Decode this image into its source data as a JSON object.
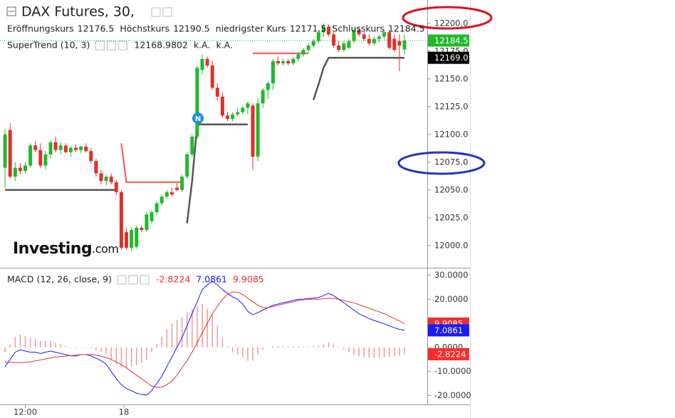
{
  "chart_data": [
    {
      "type": "candlestick",
      "title": "DAX Futures, 30,",
      "ohlc_labels": [
        "Eröffnungskurs",
        "Höchstkurs",
        "niedrigster Kurs",
        "Schlusskurs"
      ],
      "up_color": "#22b82d",
      "down_color": "#e0302a",
      "open": [
        12070,
        12104,
        12062,
        12070,
        12067,
        12072,
        12090,
        12086,
        12072,
        12082,
        12093,
        12086,
        12090,
        12084,
        12088,
        12086,
        12089,
        12085,
        12076,
        12065,
        12058,
        12062,
        12057,
        12048,
        12012,
        11998,
        11999,
        12016,
        12014,
        12022,
        12030,
        12038,
        12044,
        12048,
        12052,
        12050,
        12062,
        12082,
        12098,
        12158,
        12168,
        12162,
        12142,
        12134,
        12117,
        12114,
        12118,
        12120,
        12124,
        12126,
        12080,
        12128,
        12140,
        12146,
        12166,
        12164,
        12166,
        12164,
        12168,
        12172,
        12176,
        12180,
        12184,
        12192,
        12197,
        12190,
        12180,
        12176,
        12178,
        12184,
        12194,
        12190,
        12186,
        12182,
        12186,
        12188,
        12192,
        12186,
        12184,
        12176.5
      ],
      "high": [
        12105,
        12110,
        12075,
        12074,
        12075,
        12092,
        12094,
        12092,
        12085,
        12095,
        12098,
        12093,
        12092,
        12090,
        12091,
        12090,
        12092,
        12088,
        12078,
        12068,
        12064,
        12065,
        12059,
        12050,
        12016,
        12016,
        12018,
        12018,
        12030,
        12032,
        12040,
        12046,
        12050,
        12052,
        12056,
        12064,
        12084,
        12100,
        12162,
        12172,
        12170,
        12166,
        12146,
        12138,
        12120,
        12120,
        12124,
        12126,
        12130,
        12128,
        12132,
        12142,
        12148,
        12168,
        12170,
        12168,
        12168,
        12170,
        12174,
        12178,
        12182,
        12186,
        12194,
        12200,
        12199,
        12192,
        12184,
        12184,
        12186,
        12196,
        12196,
        12192,
        12190,
        12188,
        12190,
        12194,
        12194,
        12190,
        12190,
        12190.5
      ],
      "low": [
        12052,
        12060,
        12058,
        12064,
        12065,
        12070,
        12084,
        12070,
        12068,
        12078,
        12084,
        12082,
        12083,
        12080,
        12084,
        12083,
        12084,
        12074,
        12062,
        12055,
        12054,
        12055,
        12045,
        11996,
        11996,
        11995,
        11997,
        12012,
        12012,
        12020,
        12028,
        12036,
        12042,
        12044,
        12049,
        12048,
        12060,
        12080,
        12096,
        12154,
        12160,
        12140,
        12130,
        12115,
        12112,
        12112,
        12116,
        12118,
        12118,
        12068,
        12076,
        12124,
        12132,
        12140,
        12162,
        12162,
        12162,
        12162,
        12166,
        12170,
        12174,
        12178,
        12182,
        12188,
        12188,
        12178,
        12174,
        12174,
        12176,
        12182,
        12188,
        12184,
        12180,
        12180,
        12183,
        12186,
        12176,
        12174,
        12157,
        12171.5
      ],
      "close": [
        12100,
        12062,
        12070,
        12067,
        12072,
        12090,
        12086,
        12072,
        12082,
        12093,
        12086,
        12090,
        12084,
        12088,
        12086,
        12089,
        12085,
        12076,
        12065,
        12058,
        12062,
        12057,
        12048,
        11998,
        11998,
        12014,
        12016,
        12014,
        12028,
        12030,
        12038,
        12044,
        12048,
        12046,
        12050,
        12062,
        12082,
        12098,
        12160,
        12168,
        12162,
        12142,
        12134,
        12117,
        12114,
        12118,
        12120,
        12124,
        12128,
        12080,
        12128,
        12140,
        12146,
        12166,
        12164,
        12166,
        12164,
        12168,
        12172,
        12176,
        12180,
        12184,
        12192,
        12197,
        12190,
        12180,
        12176,
        12182,
        12184,
        12194,
        12190,
        12186,
        12182,
        12186,
        12188,
        12192,
        12178,
        12176,
        12180,
        12184.5
      ],
      "indicator_title": "SuperTrend (10, 3)",
      "indicator_extra": [
        "k.A.",
        "k.A."
      ],
      "supertrend": [
        {
          "color": "#555555",
          "last_label": "12169.0",
          "values": [
            12050,
            12050,
            12050,
            12050,
            12050,
            12050,
            12050,
            12050,
            12050,
            12050,
            12050,
            12050,
            12050,
            12050,
            12050,
            12050,
            12050,
            12050,
            12050,
            12050,
            12050,
            12050,
            12050,
            null,
            null,
            null,
            null,
            null,
            null,
            null,
            null,
            null,
            null,
            null,
            null,
            null,
            12020,
            12058,
            12109,
            12109,
            12109,
            12109,
            12109,
            12109,
            12109,
            12109,
            12109,
            12109,
            12109,
            null,
            null,
            null,
            null,
            null,
            null,
            null,
            null,
            null,
            null,
            null,
            null,
            12131,
            12145,
            12160,
            12169,
            12169,
            12169,
            12169,
            12169,
            12169,
            12169,
            12169,
            12169,
            12169,
            12169,
            12169,
            12169,
            12169,
            12169,
            12168.9802
          ]
        },
        {
          "color": "#f07070",
          "values": [
            null,
            null,
            null,
            null,
            null,
            null,
            null,
            null,
            null,
            null,
            null,
            null,
            null,
            null,
            null,
            null,
            null,
            null,
            null,
            null,
            null,
            null,
            null,
            12092,
            12057,
            12057,
            12057,
            12057,
            12057,
            12057,
            12057,
            12057,
            12057,
            12057,
            12057,
            12057,
            null,
            null,
            null,
            null,
            null,
            null,
            null,
            null,
            null,
            null,
            null,
            null,
            null,
            12173,
            12173,
            12173,
            12173,
            12173,
            12173,
            12173,
            12173,
            12173,
            12173,
            12173,
            12173,
            null,
            null,
            null,
            null,
            null,
            null,
            null,
            null,
            null,
            null,
            null,
            null,
            null,
            null,
            null,
            null,
            null,
            null,
            null
          ]
        }
      ],
      "watermark": [
        "Investing",
        ".com"
      ],
      "xlim": [
        -1,
        83.5
      ],
      "ylim": [
        11980,
        12221
      ],
      "yticks": [
        {
          "value": 12000,
          "label": "12000.0"
        },
        {
          "value": 12025,
          "label": "12025.0"
        },
        {
          "value": 12050,
          "label": "12050.0"
        },
        {
          "value": 12075,
          "label": "12075.0"
        },
        {
          "value": 12100,
          "label": "12100.0"
        },
        {
          "value": 12125,
          "label": "12125.0"
        },
        {
          "value": 12150,
          "label": "12150.0"
        },
        {
          "value": 12175,
          "label": "12175.0"
        },
        {
          "value": 12200,
          "label": "12200.0"
        }
      ]
    },
    {
      "type": "macd",
      "title": "MACD (12, 26, close, 9)",
      "series": [
        {
          "kind": "bar",
          "color": "#ff2a2a",
          "bar_color": "#f19a9a",
          "values": [
            -2,
            1.2,
            4.3,
            5.3,
            4.7,
            4,
            3.6,
            2.7,
            2.8,
            2.9,
            2,
            1.3,
            0.6,
            -0.1,
            -0.3,
            0,
            0,
            -0.5,
            -1.3,
            -1.9,
            -2.8,
            -5,
            -7,
            -8.3,
            -8.5,
            -8,
            -7.5,
            -6.5,
            -5.3,
            -2,
            1.5,
            4.5,
            7.5,
            10,
            11.5,
            12.5,
            14.5,
            16,
            17,
            18,
            16,
            13.5,
            9,
            4,
            0.5,
            -2,
            -3,
            -4,
            -5.5,
            -5.5,
            -3,
            -1,
            0,
            0.5,
            0.5,
            0.6,
            0.5,
            0.5,
            0.5,
            0.2,
            0.3,
            0.5,
            0.7,
            1.3,
            2.1,
            1.2,
            0,
            -0.9,
            -2,
            -3,
            -3.8,
            -4,
            -4.3,
            -4.3,
            -4.3,
            -4.2,
            -4,
            -3.8,
            -3.5,
            -2.8224
          ]
        },
        {
          "kind": "line",
          "color": "#1a1aff",
          "values": [
            -8,
            -5,
            -2,
            -1,
            -1.5,
            -2,
            -2,
            -2.5,
            -2,
            -1.5,
            -2,
            -2.5,
            -3,
            -3.5,
            -3.5,
            -3,
            -3,
            -3.5,
            -4.5,
            -5.5,
            -7,
            -10,
            -13,
            -15.5,
            -17,
            -18,
            -19,
            -19.5,
            -19.8,
            -18,
            -15,
            -12,
            -8,
            -4,
            0,
            4,
            9,
            14,
            19,
            24,
            26,
            27.5,
            26,
            24,
            22.5,
            21,
            20,
            18,
            15,
            13.5,
            14.5,
            15.5,
            16.5,
            17.5,
            18,
            18.6,
            19,
            19.5,
            20,
            20,
            20.3,
            20.5,
            20.7,
            21.5,
            22.5,
            21.5,
            20,
            18.6,
            17,
            15.5,
            14,
            13,
            12,
            11.2,
            10.5,
            9.8,
            9,
            8.2,
            7.5,
            7.0861
          ]
        },
        {
          "kind": "line",
          "color": "#e83030",
          "values": [
            -6,
            -6.2,
            -6.3,
            -6.3,
            -6.2,
            -6,
            -5.6,
            -5.2,
            -4.8,
            -4.4,
            -4,
            -3.8,
            -3.6,
            -3.4,
            -3.2,
            -3,
            -3,
            -3,
            -3.2,
            -3.6,
            -4.2,
            -5,
            -6,
            -7.2,
            -8.5,
            -10,
            -11.5,
            -13,
            -14.5,
            -16,
            -16.5,
            -16.5,
            -15.5,
            -14,
            -11.5,
            -8.5,
            -5.5,
            -2,
            2,
            6,
            10,
            14,
            17,
            20,
            22,
            23,
            23,
            22,
            20.5,
            19,
            17.5,
            16.5,
            16.5,
            17,
            17.5,
            18,
            18.5,
            19,
            19.5,
            19.8,
            20,
            20,
            20,
            20.2,
            20.4,
            20.3,
            20,
            19.5,
            19,
            18.5,
            17.8,
            17,
            16.3,
            15.5,
            14.8,
            14,
            13,
            12,
            11,
            9.9085
          ]
        }
      ],
      "xlim": [
        -1,
        83.5
      ],
      "ylim": [
        -23.7,
        32.8
      ],
      "yticks": [
        {
          "value": -20,
          "label": "-20.0000"
        },
        {
          "value": -10,
          "label": "-10.0000"
        },
        {
          "value": 0,
          "label": "0.0000"
        },
        {
          "value": 10,
          "label": "10.0000"
        },
        {
          "value": 20,
          "label": "20.0000"
        },
        {
          "value": 30,
          "label": "30.0000"
        }
      ],
      "xticks": [
        {
          "value": 4,
          "label": "12:00"
        },
        {
          "value": 23.5,
          "label": "18"
        }
      ]
    }
  ]
}
